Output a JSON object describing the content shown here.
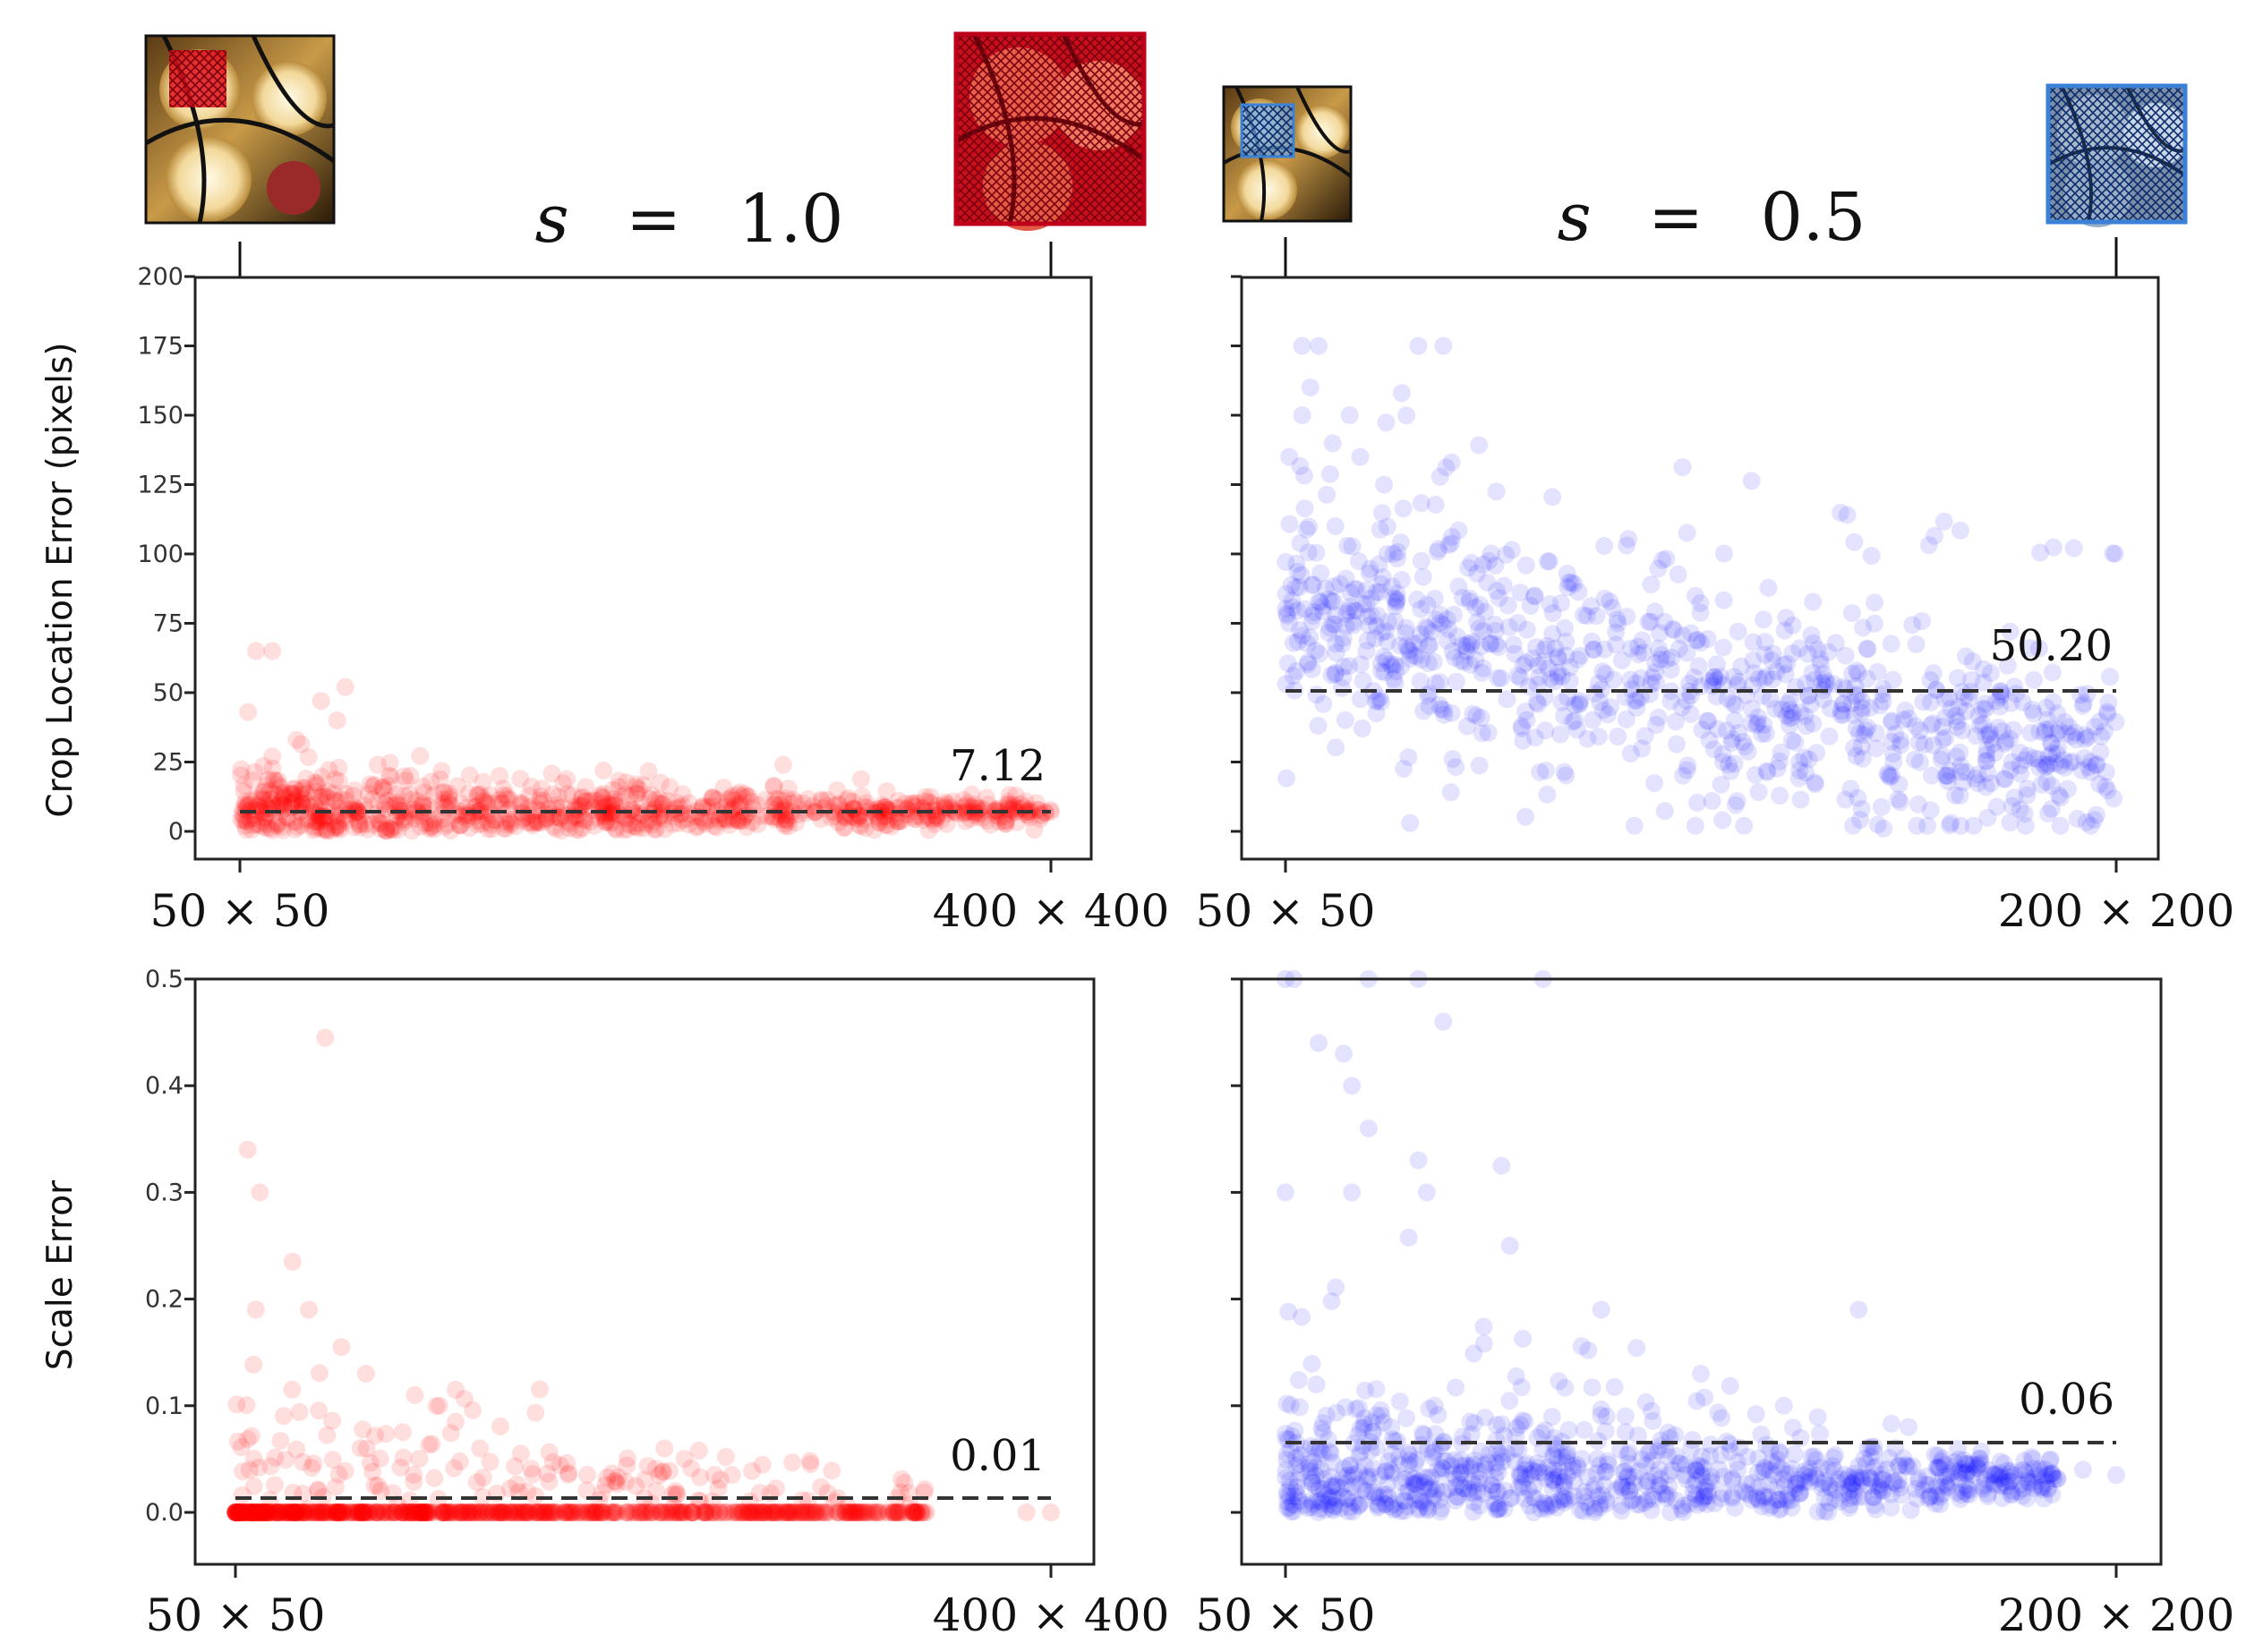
{
  "titles": {
    "left_var": "s",
    "left_eq": "=",
    "left_val": "1.0",
    "right_var": "s",
    "right_eq": "=",
    "right_val": "0.5"
  },
  "ylabels": {
    "top": "Crop Location Error (pixels)",
    "bottom": "Scale Error"
  },
  "corner_labels": {
    "left_start": "50 × 50",
    "left_end": "400 × 400",
    "right_start": "50 × 50",
    "right_end": "200 × 200"
  },
  "colors": {
    "red": "#ff0000",
    "blue": "#0000ff",
    "mean_line": "#333333",
    "thumb_red_border": "#c0001a",
    "thumb_blue_border": "#3b82d6"
  },
  "chart_data": [
    {
      "id": "crop-s1",
      "type": "scatter",
      "x": [
        "50 × 50",
        "400 × 400"
      ],
      "ylabel": "Crop Location Error (pixels)",
      "ylim": [
        -8,
        200
      ],
      "yticks": [
        "0",
        "25",
        "50",
        "75",
        "100",
        "125",
        "150",
        "175",
        "200"
      ],
      "ytick_values": [
        0,
        25,
        50,
        75,
        100,
        125,
        150,
        175,
        200
      ],
      "color": "#ff0000",
      "mean": 7.12,
      "mean_label": "7.12",
      "sample_points": [
        [
          0.02,
          65
        ],
        [
          0.04,
          65
        ],
        [
          0.13,
          52
        ],
        [
          0.12,
          40
        ],
        [
          0.01,
          43
        ],
        [
          0.1,
          47
        ],
        [
          0.07,
          33
        ],
        [
          0.04,
          27
        ],
        [
          0.17,
          24
        ],
        [
          0.21,
          20
        ],
        [
          0.25,
          14
        ],
        [
          0.3,
          12
        ],
        [
          0.37,
          10
        ],
        [
          0.45,
          9
        ],
        [
          0.52,
          8
        ],
        [
          0.6,
          9
        ],
        [
          0.68,
          10
        ],
        [
          0.67,
          24
        ],
        [
          0.75,
          12
        ],
        [
          0.82,
          10
        ],
        [
          0.9,
          9
        ],
        [
          0.97,
          7
        ],
        [
          1.0,
          7
        ]
      ]
    },
    {
      "id": "crop-s05",
      "type": "scatter",
      "x": [
        "50 × 50",
        "200 × 200"
      ],
      "ylabel": "Crop Location Error (pixels)",
      "ylim": [
        -8,
        200
      ],
      "yticks": [
        "0",
        "25",
        "50",
        "75",
        "100",
        "125",
        "150",
        "175",
        "200"
      ],
      "ytick_values": [
        0,
        25,
        50,
        75,
        100,
        125,
        150,
        175,
        200
      ],
      "color": "#0000ff",
      "mean": 50.2,
      "mean_label": "50.20",
      "sample_points": [
        [
          0.02,
          175
        ],
        [
          0.04,
          175
        ],
        [
          0.16,
          175
        ],
        [
          0.19,
          175
        ],
        [
          0.03,
          160
        ],
        [
          0.14,
          158
        ],
        [
          0.02,
          150
        ],
        [
          0.09,
          135
        ],
        [
          0.2,
          133
        ],
        [
          0.06,
          110
        ],
        [
          0.13,
          100
        ],
        [
          0.22,
          95
        ],
        [
          0.3,
          85
        ],
        [
          0.4,
          75
        ],
        [
          0.5,
          68
        ],
        [
          0.6,
          60
        ],
        [
          0.7,
          55
        ],
        [
          0.78,
          57
        ],
        [
          0.86,
          45
        ],
        [
          0.93,
          30
        ],
        [
          0.98,
          17
        ],
        [
          0.15,
          3
        ],
        [
          0.42,
          2
        ],
        [
          0.72,
          1
        ]
      ]
    },
    {
      "id": "scale-s1",
      "type": "scatter",
      "x": [
        "50 × 50",
        "400 × 400"
      ],
      "ylabel": "Scale Error",
      "ylim": [
        -0.05,
        0.5
      ],
      "yticks": [
        "0.0",
        "0.1",
        "0.2",
        "0.3",
        "0.4",
        "0.5"
      ],
      "ytick_values": [
        0,
        0.1,
        0.2,
        0.3,
        0.4,
        0.5
      ],
      "color": "#ff0000",
      "mean": 0.01,
      "mean_label": "0.01",
      "sample_points": [
        [
          0.11,
          0.445
        ],
        [
          0.015,
          0.34
        ],
        [
          0.03,
          0.3
        ],
        [
          0.07,
          0.235
        ],
        [
          0.025,
          0.19
        ],
        [
          0.09,
          0.19
        ],
        [
          0.13,
          0.155
        ],
        [
          0.16,
          0.13
        ],
        [
          0.22,
          0.11
        ],
        [
          0.25,
          0.1
        ],
        [
          0.27,
          0.085
        ],
        [
          0.3,
          0.06
        ],
        [
          0.35,
          0.055
        ],
        [
          0.48,
          0.044
        ],
        [
          0.52,
          0.035
        ],
        [
          0.6,
          0.0
        ],
        [
          0.8,
          0.0
        ],
        [
          0.97,
          0.0
        ],
        [
          1.0,
          0.0
        ]
      ]
    },
    {
      "id": "scale-s05",
      "type": "scatter",
      "x": [
        "50 × 50",
        "200 × 200"
      ],
      "ylabel": "Scale Error",
      "ylim": [
        -0.05,
        0.5
      ],
      "yticks": [
        "0.0",
        "0.1",
        "0.2",
        "0.3",
        "0.4",
        "0.5"
      ],
      "ytick_values": [
        0,
        0.1,
        0.2,
        0.3,
        0.4,
        0.5
      ],
      "color": "#0000ff",
      "mean": 0.06,
      "mean_label": "0.06",
      "sample_points": [
        [
          0.0,
          0.5
        ],
        [
          0.01,
          0.5
        ],
        [
          0.1,
          0.5
        ],
        [
          0.16,
          0.5
        ],
        [
          0.31,
          0.5
        ],
        [
          0.19,
          0.46
        ],
        [
          0.04,
          0.44
        ],
        [
          0.07,
          0.43
        ],
        [
          0.08,
          0.4
        ],
        [
          0.1,
          0.36
        ],
        [
          0.16,
          0.33
        ],
        [
          0.26,
          0.325
        ],
        [
          0.0,
          0.3
        ],
        [
          0.08,
          0.3
        ],
        [
          0.17,
          0.3
        ],
        [
          0.27,
          0.25
        ],
        [
          0.38,
          0.19
        ],
        [
          0.5,
          0.13
        ],
        [
          0.69,
          0.19
        ],
        [
          0.6,
          0.1
        ],
        [
          0.75,
          0.08
        ],
        [
          0.9,
          0.05
        ],
        [
          0.96,
          0.04
        ],
        [
          1.0,
          0.035
        ]
      ]
    }
  ],
  "icons": {
    "thumb_left_small": "image-thumbnail-small-crop",
    "thumb_left_large": "image-thumbnail-large-crop",
    "thumb_right_small": "image-thumbnail-small-crop",
    "thumb_right_large": "image-thumbnail-large-crop"
  }
}
